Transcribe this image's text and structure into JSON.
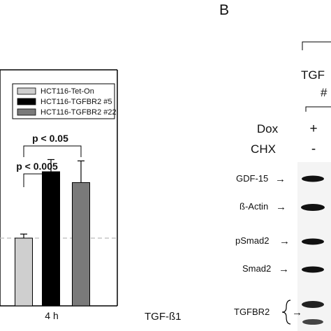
{
  "panel_b": {
    "letter": "B",
    "header_text": "TGF",
    "header_sub": "#",
    "dox_label": "Dox",
    "dox_value": "+",
    "chx_label": "CHX",
    "chx_value": "-",
    "blots": [
      {
        "label": "GDF-15",
        "arrow": "→"
      },
      {
        "label": "ß-Actin",
        "arrow": "→"
      },
      {
        "label": "pSmad2",
        "arrow": "→"
      },
      {
        "label": "Smad2",
        "arrow": "→"
      },
      {
        "label": "TGFBR2",
        "arrow": "→"
      }
    ]
  },
  "chart_data": {
    "type": "bar",
    "categories": [
      "4 h"
    ],
    "xlabel": "TGF-ß1",
    "series": [
      {
        "name": "HCT116-Tet-On",
        "values": [
          1.0
        ],
        "error": [
          0.06
        ],
        "color": "#cfcfcf"
      },
      {
        "name": "HCT116-TGFBR2 #5",
        "values": [
          1.98
        ],
        "error": [
          0.18
        ],
        "color": "#000000"
      },
      {
        "name": "HCT116-TGFBR2 #22",
        "values": [
          1.82
        ],
        "error": [
          0.32
        ],
        "color": "#7a7a7a"
      }
    ],
    "reference_line": 1.0,
    "annotations": [
      {
        "text": "p < 0.05",
        "from": "HCT116-Tet-On",
        "to": "HCT116-TGFBR2 #22"
      },
      {
        "text": "p < 0.005",
        "from": "HCT116-Tet-On",
        "to": "HCT116-TGFBR2 #5"
      }
    ],
    "legend_position": "top"
  }
}
